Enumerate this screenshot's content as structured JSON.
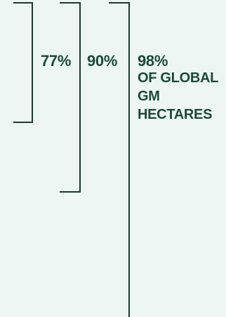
{
  "brackets": [
    {
      "value_label": "77%"
    },
    {
      "value_label": "90%"
    },
    {
      "value_label": "98%",
      "description_lines": [
        "OF GLOBAL",
        "GM",
        "HECTARES"
      ]
    }
  ],
  "colors": {
    "background": "#eef6f4",
    "line": "#1a3a2e",
    "text": "#1a4a38"
  }
}
